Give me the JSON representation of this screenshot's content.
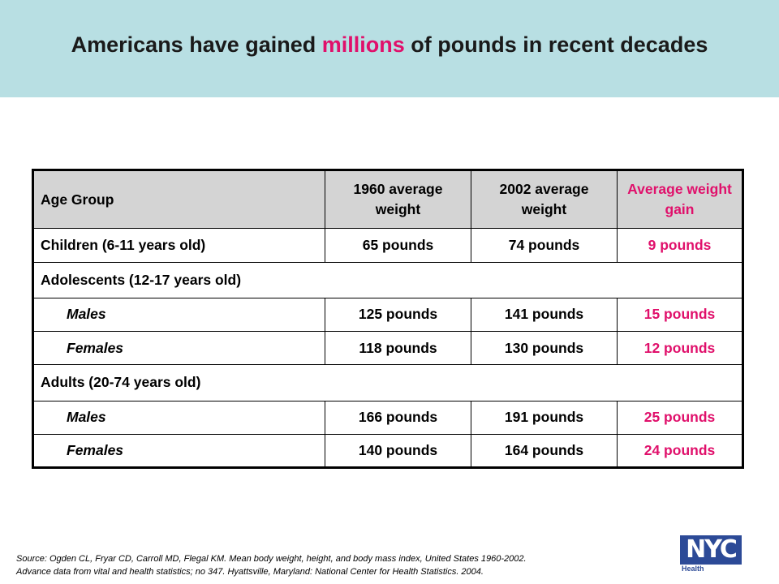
{
  "title": {
    "before": "Americans have gained ",
    "accent": "millions",
    "after": " of pounds in recent decades"
  },
  "table": {
    "headers": {
      "age_group": "Age Group",
      "w1960": "1960 average weight",
      "w2002": "2002 average weight",
      "gain": "Average weight gain"
    },
    "children": {
      "label": "Children (6-11 years old)",
      "w1960": "65 pounds",
      "w2002": "74 pounds",
      "gain": "9 pounds"
    },
    "adolescents": {
      "label": "Adolescents (12-17 years old)",
      "males": {
        "label": "Males",
        "w1960": "125 pounds",
        "w2002": "141 pounds",
        "gain": "15 pounds"
      },
      "females": {
        "label": "Females",
        "w1960": "118 pounds",
        "w2002": "130 pounds",
        "gain": "12 pounds"
      }
    },
    "adults": {
      "label": "Adults (20-74 years old)",
      "males": {
        "label": "Males",
        "w1960": "166 pounds",
        "w2002": "191 pounds",
        "gain": "25 pounds"
      },
      "females": {
        "label": "Females",
        "w1960": "140 pounds",
        "w2002": "164 pounds",
        "gain": "24 pounds"
      }
    }
  },
  "source": {
    "line1": "Source: Ogden CL, Fryar CD, Carroll MD, Flegal KM. Mean body weight, height, and body mass index, United States 1960-2002.",
    "line2": "Advance data from vital and health statistics; no 347. Hyattsville, Maryland: National Center for Health Statistics. 2004."
  },
  "logo": {
    "text": "NYC",
    "sub": "Health"
  },
  "colors": {
    "header_bg": "#b8dfe3",
    "accent": "#e0106b",
    "table_header_bg": "#d4d4d4",
    "logo": "#2c4a97"
  }
}
